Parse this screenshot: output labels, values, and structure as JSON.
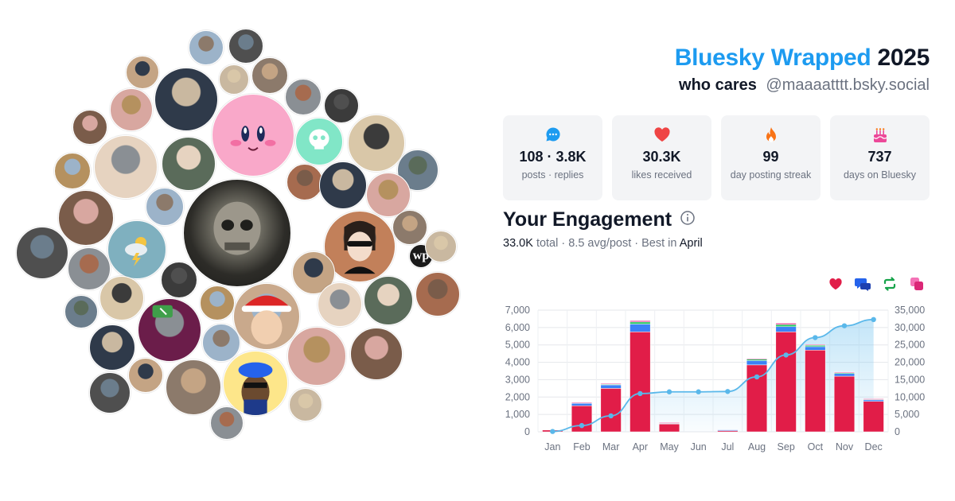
{
  "header": {
    "brand": "Bluesky Wrapped",
    "year": "2025",
    "display_name": "who cares",
    "handle": "@maaaatttt.bsky.social"
  },
  "stats": [
    {
      "icon": "chat-bubble-icon",
      "value": "108 · 3.8K",
      "label": "posts · replies",
      "color": "#1d9bf0"
    },
    {
      "icon": "heart-icon",
      "value": "30.3K",
      "label": "likes received",
      "color": "#ef4444"
    },
    {
      "icon": "flame-icon",
      "value": "99",
      "label": "day posting streak",
      "color": "#f97316"
    },
    {
      "icon": "cake-icon",
      "value": "737",
      "label": "days on Bluesky",
      "color": "#ec4899"
    }
  ],
  "engagement": {
    "title": "Your Engagement",
    "total_value": "33.0K",
    "total_word": "total",
    "avg": "8.5 avg/post",
    "best_prefix": "Best in",
    "best_month": "April",
    "legend": [
      {
        "icon": "heart-icon",
        "color": "#e11d48"
      },
      {
        "icon": "reply-icon",
        "color": "#2563eb"
      },
      {
        "icon": "repost-icon",
        "color": "#16a34a"
      },
      {
        "icon": "quote-icon",
        "color": "#db2777"
      }
    ]
  },
  "chart_data": {
    "type": "bar",
    "categories": [
      "Jan",
      "Feb",
      "Mar",
      "Apr",
      "May",
      "Jun",
      "Jul",
      "Aug",
      "Sep",
      "Oct",
      "Nov",
      "Dec"
    ],
    "series": [
      {
        "values": [
          100,
          1500,
          2500,
          5750,
          450,
          0,
          100,
          3850,
          5750,
          4700,
          3200,
          1750
        ],
        "color": "#e11d48"
      },
      {
        "values": [
          0,
          150,
          200,
          450,
          60,
          0,
          10,
          250,
          300,
          200,
          150,
          100
        ],
        "color": "#3b82f6"
      },
      {
        "values": [
          0,
          30,
          50,
          120,
          10,
          0,
          0,
          80,
          120,
          80,
          60,
          30
        ],
        "color": "#22c55e"
      },
      {
        "values": [
          0,
          20,
          30,
          80,
          10,
          0,
          0,
          40,
          80,
          40,
          30,
          20
        ],
        "color": "#ec4899"
      }
    ],
    "cumulative": [
      100,
      1800,
      4600,
      11000,
      11500,
      11500,
      11600,
      15800,
      22100,
      27100,
      30500,
      32300
    ],
    "ylim": [
      0,
      7000
    ],
    "yticks": [
      "0",
      "1,000",
      "2,000",
      "3,000",
      "4,000",
      "5,000",
      "6,000",
      "7,000"
    ],
    "y2lim": [
      0,
      35000
    ],
    "y2ticks": [
      "0",
      "5,000",
      "10,000",
      "15,000",
      "20,000",
      "25,000",
      "30,000",
      "35,000"
    ],
    "grid": true,
    "line_color": "#5ab8ea"
  },
  "avatars": [
    {
      "desc": "avatar-kirby",
      "color": "#f9a8c9"
    },
    {
      "desc": "avatar-skull-mask",
      "color": "#3a3a36"
    },
    {
      "desc": "avatar-sunglasses-portrait",
      "color": "#c2805a"
    },
    {
      "desc": "avatar-cartoon-bucket-hat",
      "color": "#fde68a"
    },
    {
      "desc": "avatar-weather-icon",
      "color": "#7fb0bf"
    },
    {
      "desc": "avatar-santa-hat-child",
      "color": "#c9a98c"
    },
    {
      "desc": "avatar-purple-cartoon",
      "color": "#6b1d4a"
    },
    {
      "desc": "avatar-teal-skull",
      "color": "#81e6c7"
    },
    {
      "desc": "avatar-washington-post",
      "color": "#ffffff"
    }
  ]
}
